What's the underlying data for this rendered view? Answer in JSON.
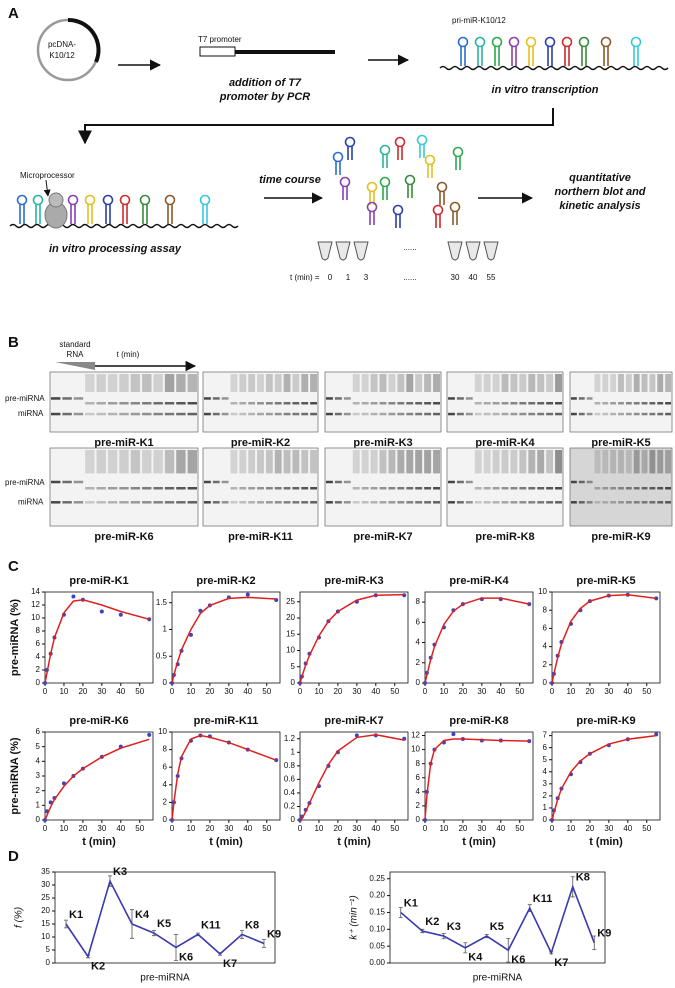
{
  "labels": [
    "A",
    "B",
    "C",
    "D"
  ],
  "panel_a": {
    "plasmid": [
      "pcDNA-",
      "K10/12"
    ],
    "promoter": "T7 promoter",
    "step1": [
      "addition of T7",
      "promoter by PCR"
    ],
    "transcript": "pri-miR-K10/12",
    "step2": "in vitro transcription",
    "enzyme": "Microprocessor",
    "step3": "in vitro processing assay",
    "step4": "time course",
    "time_prefix": "t (min) =",
    "times": [
      "0",
      "1",
      "3",
      "......",
      "30",
      "40",
      "55"
    ],
    "step5": [
      "quantitative",
      "northern blot and",
      "kinetic analysis"
    ]
  },
  "panel_b": {
    "standard": [
      "standard",
      "RNA"
    ],
    "time": "t (min)",
    "rows": [
      {
        "pre": "pre-miRNA",
        "mi": "miRNA",
        "gels": [
          "pre-miR-K1",
          "pre-miR-K2",
          "pre-miR-K3",
          "pre-miR-K4",
          "pre-miR-K5"
        ]
      },
      {
        "pre": "pre-miRNA",
        "mi": "miRNA",
        "gels": [
          "pre-miR-K6",
          "pre-miR-K11",
          "pre-miR-K7",
          "pre-miR-K8",
          "pre-miR-K9"
        ]
      }
    ]
  },
  "chart_data": [
    {
      "type": "line",
      "title": "pre-miR-K1",
      "ylabel": "pre-miRNA (%)",
      "x": [
        0,
        1,
        3,
        5,
        10,
        15,
        20,
        30,
        40,
        55
      ],
      "xlim": [
        0,
        57
      ],
      "xticks": [
        0,
        10,
        20,
        30,
        40,
        50
      ],
      "ylim": [
        0,
        14
      ],
      "yticks": [
        0,
        2,
        4,
        6,
        8,
        10,
        12,
        14
      ],
      "series": [
        {
          "style": "points",
          "color": "#3a46c0",
          "values": [
            0,
            2,
            4.5,
            7,
            10.5,
            13.3,
            12.8,
            11,
            10.5,
            9.8
          ]
        },
        {
          "style": "line",
          "color": "#e02020",
          "values": [
            0,
            1.5,
            4.5,
            7,
            10.8,
            12.6,
            12.8,
            12,
            11,
            9.8
          ]
        }
      ]
    },
    {
      "type": "line",
      "title": "pre-miR-K2",
      "x": [
        0,
        1,
        3,
        5,
        10,
        15,
        20,
        30,
        40,
        55
      ],
      "xlim": [
        0,
        57
      ],
      "xticks": [
        0,
        10,
        20,
        30,
        40,
        50
      ],
      "ylim": [
        0,
        1.7
      ],
      "yticks": [
        0,
        0.5,
        1,
        1.5
      ],
      "series": [
        {
          "style": "points",
          "color": "#3a46c0",
          "values": [
            0,
            0.15,
            0.35,
            0.6,
            0.9,
            1.35,
            1.45,
            1.6,
            1.65,
            1.55
          ]
        },
        {
          "style": "line",
          "color": "#e02020",
          "values": [
            0,
            0.15,
            0.4,
            0.62,
            1.0,
            1.3,
            1.45,
            1.58,
            1.6,
            1.57
          ]
        }
      ]
    },
    {
      "type": "line",
      "title": "pre-miR-K3",
      "x": [
        0,
        1,
        3,
        5,
        10,
        15,
        20,
        30,
        40,
        55
      ],
      "xlim": [
        0,
        57
      ],
      "xticks": [
        0,
        10,
        20,
        30,
        40,
        50
      ],
      "ylim": [
        0,
        28
      ],
      "yticks": [
        0,
        5,
        10,
        15,
        20,
        25
      ],
      "series": [
        {
          "style": "points",
          "color": "#3a46c0",
          "values": [
            0,
            2,
            6,
            9,
            14,
            19,
            22,
            25,
            27,
            27
          ]
        },
        {
          "style": "line",
          "color": "#e02020",
          "values": [
            0,
            2,
            5.5,
            8.5,
            14.5,
            19,
            22,
            25.5,
            27,
            27.2
          ]
        }
      ]
    },
    {
      "type": "line",
      "title": "pre-miR-K4",
      "x": [
        0,
        1,
        3,
        5,
        10,
        15,
        20,
        30,
        40,
        55
      ],
      "xlim": [
        0,
        57
      ],
      "xticks": [
        0,
        10,
        20,
        30,
        40,
        50
      ],
      "ylim": [
        0,
        9
      ],
      "yticks": [
        0,
        2,
        4,
        6,
        8
      ],
      "series": [
        {
          "style": "points",
          "color": "#3a46c0",
          "values": [
            0,
            1,
            2.5,
            3.8,
            5.5,
            7.2,
            7.8,
            8.3,
            8.3,
            7.8
          ]
        },
        {
          "style": "line",
          "color": "#e02020",
          "values": [
            0,
            0.8,
            2.3,
            3.6,
            5.8,
            7.1,
            7.8,
            8.4,
            8.4,
            7.8
          ]
        }
      ]
    },
    {
      "type": "line",
      "title": "pre-miR-K5",
      "x": [
        0,
        1,
        3,
        5,
        10,
        15,
        20,
        30,
        40,
        55
      ],
      "xlim": [
        0,
        57
      ],
      "xticks": [
        0,
        10,
        20,
        30,
        40,
        50
      ],
      "ylim": [
        0,
        10
      ],
      "yticks": [
        0,
        2,
        4,
        6,
        8,
        10
      ],
      "series": [
        {
          "style": "points",
          "color": "#3a46c0",
          "values": [
            0,
            1,
            3,
            4.5,
            6.5,
            8,
            9,
            9.6,
            9.7,
            9.3
          ]
        },
        {
          "style": "line",
          "color": "#e02020",
          "values": [
            0,
            1,
            2.8,
            4.3,
            6.8,
            8.2,
            9,
            9.6,
            9.7,
            9.3
          ]
        }
      ]
    },
    {
      "type": "line",
      "title": "pre-miR-K6",
      "ylabel": "pre-miRNA (%)",
      "xlabel": "t (min)",
      "x": [
        0,
        1,
        3,
        5,
        10,
        15,
        20,
        30,
        40,
        55
      ],
      "xlim": [
        0,
        57
      ],
      "xticks": [
        0,
        10,
        20,
        30,
        40,
        50
      ],
      "ylim": [
        0,
        6
      ],
      "yticks": [
        0,
        1,
        2,
        3,
        4,
        5,
        6
      ],
      "series": [
        {
          "style": "points",
          "color": "#3a46c0",
          "values": [
            0,
            0.6,
            1.2,
            1.5,
            2.5,
            3,
            3.5,
            4.3,
            5,
            5.8
          ]
        },
        {
          "style": "line",
          "color": "#e02020",
          "values": [
            0,
            0.3,
            0.9,
            1.4,
            2.3,
            3,
            3.5,
            4.3,
            4.9,
            5.5
          ]
        }
      ]
    },
    {
      "type": "line",
      "title": "pre-miR-K11",
      "xlabel": "t (min)",
      "x": [
        0,
        1,
        3,
        5,
        10,
        15,
        20,
        30,
        40,
        55
      ],
      "xlim": [
        0,
        57
      ],
      "xticks": [
        0,
        10,
        20,
        30,
        40,
        50
      ],
      "ylim": [
        0,
        10
      ],
      "yticks": [
        0,
        2,
        4,
        6,
        8,
        10
      ],
      "series": [
        {
          "style": "points",
          "color": "#3a46c0",
          "values": [
            0,
            2,
            5,
            7,
            9,
            9.6,
            9.5,
            8.8,
            8,
            6.8
          ]
        },
        {
          "style": "line",
          "color": "#e02020",
          "values": [
            0,
            2,
            5.2,
            7.2,
            9.2,
            9.6,
            9.4,
            8.8,
            8,
            6.8
          ]
        }
      ]
    },
    {
      "type": "line",
      "title": "pre-miR-K7",
      "xlabel": "t (min)",
      "x": [
        0,
        1,
        3,
        5,
        10,
        15,
        20,
        30,
        40,
        55
      ],
      "xlim": [
        0,
        57
      ],
      "xticks": [
        0,
        10,
        20,
        30,
        40,
        50
      ],
      "ylim": [
        0,
        1.3
      ],
      "yticks": [
        0,
        0.2,
        0.4,
        0.6,
        0.8,
        1,
        1.2
      ],
      "series": [
        {
          "style": "points",
          "color": "#3a46c0",
          "values": [
            0,
            0.05,
            0.15,
            0.25,
            0.5,
            0.8,
            1,
            1.25,
            1.25,
            1.2
          ]
        },
        {
          "style": "line",
          "color": "#e02020",
          "values": [
            0,
            0.02,
            0.12,
            0.25,
            0.55,
            0.82,
            1.02,
            1.22,
            1.26,
            1.18
          ]
        }
      ]
    },
    {
      "type": "line",
      "title": "pre-miR-K8",
      "xlabel": "t (min)",
      "x": [
        0,
        1,
        3,
        5,
        10,
        15,
        20,
        30,
        40,
        55
      ],
      "xlim": [
        0,
        57
      ],
      "xticks": [
        0,
        10,
        20,
        30,
        40,
        50
      ],
      "ylim": [
        0,
        12.5
      ],
      "yticks": [
        0,
        2,
        4,
        6,
        8,
        10,
        12
      ],
      "series": [
        {
          "style": "points",
          "color": "#3a46c0",
          "values": [
            0,
            4,
            8,
            10,
            11,
            12.2,
            11.5,
            11.3,
            11.3,
            11.2
          ]
        },
        {
          "style": "line",
          "color": "#e02020",
          "values": [
            0,
            3.5,
            8,
            10,
            11.3,
            11.5,
            11.5,
            11.4,
            11.3,
            11.2
          ]
        }
      ]
    },
    {
      "type": "line",
      "title": "pre-miR-K9",
      "xlabel": "t (min)",
      "x": [
        0,
        1,
        3,
        5,
        10,
        15,
        20,
        30,
        40,
        55
      ],
      "xlim": [
        0,
        57
      ],
      "xticks": [
        0,
        10,
        20,
        30,
        40,
        50
      ],
      "ylim": [
        0,
        7.3
      ],
      "yticks": [
        0,
        1,
        2,
        3,
        4,
        5,
        6,
        7
      ],
      "series": [
        {
          "style": "points",
          "color": "#3a46c0",
          "values": [
            0,
            0.8,
            1.8,
            2.6,
            3.8,
            4.8,
            5.5,
            6.2,
            6.7,
            7.1
          ]
        },
        {
          "style": "line",
          "color": "#e02020",
          "values": [
            0,
            0.6,
            1.7,
            2.6,
            4,
            4.9,
            5.5,
            6.3,
            6.7,
            7
          ]
        }
      ]
    },
    {
      "type": "errorline",
      "xlabel": "pre-miRNA",
      "ylabel": "f (%)",
      "categories": [
        "K1",
        "K2",
        "K3",
        "K4",
        "K5",
        "K6",
        "K11",
        "K7",
        "K8",
        "K9"
      ],
      "color": "#3a3ab0",
      "values": [
        15,
        2.5,
        31.5,
        15,
        11.5,
        6,
        11,
        3.5,
        11,
        7.5
      ],
      "errors": [
        1.5,
        0.5,
        2,
        5.5,
        1,
        5,
        0.5,
        0.5,
        1.5,
        1.5
      ],
      "ylim": [
        0,
        35
      ],
      "yticks": [
        0,
        5,
        10,
        15,
        20,
        25,
        30,
        35
      ]
    },
    {
      "type": "errorline",
      "xlabel": "pre-miRNA",
      "ylabel": "k⁺ (min⁻¹)",
      "categories": [
        "K1",
        "K2",
        "K3",
        "K4",
        "K5",
        "K6",
        "K11",
        "K7",
        "K8",
        "K9"
      ],
      "color": "#3a3ab0",
      "values": [
        0.15,
        0.095,
        0.08,
        0.045,
        0.08,
        0.038,
        0.163,
        0.03,
        0.226,
        0.06
      ],
      "errors": [
        0.015,
        0.005,
        0.008,
        0.015,
        0.005,
        0.035,
        0.01,
        0.003,
        0.03,
        0.02
      ],
      "ylim": [
        0,
        0.27
      ],
      "yticks": [
        {
          "value": 0,
          "label": "0.00"
        },
        0.05,
        {
          "value": 0.1,
          "label": "0.10"
        },
        0.15,
        {
          "value": 0.2,
          "label": "0.20"
        },
        0.25
      ]
    }
  ]
}
